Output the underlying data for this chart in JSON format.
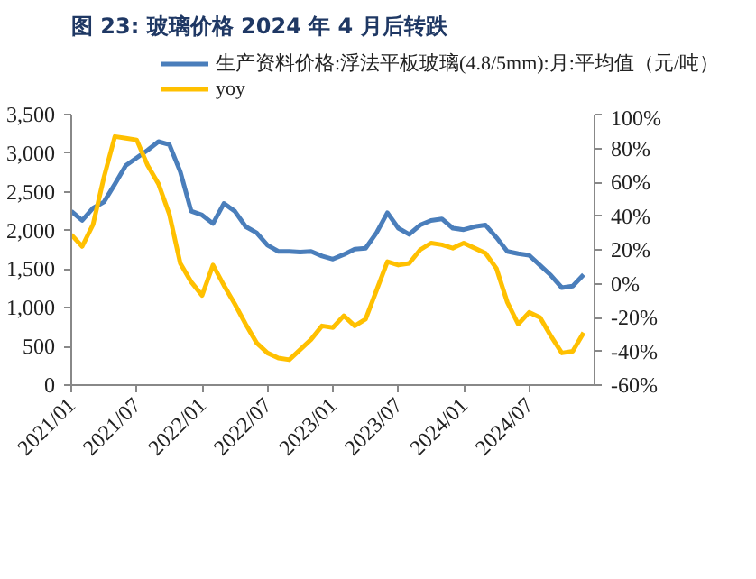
{
  "chart_data": {
    "type": "line",
    "title": "图 23:  玻璃价格 2024 年 4 月后转跌",
    "x": [
      "2021-01",
      "2021-02",
      "2021-03",
      "2021-04",
      "2021-05",
      "2021-06",
      "2021-07",
      "2021-08",
      "2021-09",
      "2021-10",
      "2021-11",
      "2021-12",
      "2022-01",
      "2022-02",
      "2022-03",
      "2022-04",
      "2022-05",
      "2022-06",
      "2022-07",
      "2022-08",
      "2022-09",
      "2022-10",
      "2022-11",
      "2022-12",
      "2023-01",
      "2023-02",
      "2023-03",
      "2023-04",
      "2023-05",
      "2023-06",
      "2023-07",
      "2023-08",
      "2023-09",
      "2023-10",
      "2023-11",
      "2023-12",
      "2024-01",
      "2024-02",
      "2024-03",
      "2024-04",
      "2024-05",
      "2024-06",
      "2024-07",
      "2024-08",
      "2024-09",
      "2024-10",
      "2024-11",
      "2024-12"
    ],
    "series": [
      {
        "name": "生产资料价格:浮法平板玻璃(4.8/5mm):月:平均值（元/吨）",
        "color": "#4a7ebb",
        "values": [
          2250,
          2130,
          2290,
          2370,
          2600,
          2840,
          2940,
          3040,
          3150,
          3110,
          2760,
          2250,
          2200,
          2090,
          2350,
          2250,
          2050,
          1970,
          1810,
          1730,
          1730,
          1720,
          1730,
          1670,
          1630,
          1690,
          1760,
          1770,
          1970,
          2230,
          2030,
          1950,
          2070,
          2130,
          2150,
          2030,
          2010,
          2050,
          2070,
          1910,
          1730,
          1700,
          1680,
          1550,
          1420,
          1260,
          1280,
          1430
        ]
      },
      {
        "name": "yoy",
        "color": "#ffc000",
        "axis": "y2",
        "values": [
          29,
          22,
          35,
          63,
          87,
          86,
          85,
          70,
          59,
          41,
          12,
          1,
          -7,
          11,
          -1,
          -12,
          -24,
          -35,
          -41,
          -44,
          -45,
          -39,
          -33,
          -25,
          -26,
          -19,
          -25,
          -21,
          -4,
          13,
          11,
          12,
          20,
          24,
          23,
          21,
          24,
          21,
          18,
          9,
          -11,
          -24,
          -17,
          -20,
          -31,
          -41,
          -40,
          -29
        ]
      }
    ],
    "xlim": [
      "2021-01",
      "2025-01"
    ],
    "xticks": [
      {
        "value": "2021-01",
        "label": "2021/01"
      },
      {
        "value": "2021-07",
        "label": "2021/07"
      },
      {
        "value": "2022-01",
        "label": "2022/01"
      },
      {
        "value": "2022-07",
        "label": "2022/07"
      },
      {
        "value": "2023-01",
        "label": "2023/01"
      },
      {
        "value": "2023-07",
        "label": "2023/07"
      },
      {
        "value": "2024-01",
        "label": "2024/01"
      },
      {
        "value": "2024-07",
        "label": "2024/07"
      }
    ],
    "ylim": [
      0,
      3500
    ],
    "yticks": [
      {
        "value": 0,
        "label": "0"
      },
      {
        "value": 500,
        "label": "500"
      },
      {
        "value": 1000,
        "label": "1,000"
      },
      {
        "value": 1500,
        "label": "1,500"
      },
      {
        "value": 2000,
        "label": "2,000"
      },
      {
        "value": 2500,
        "label": "2,500"
      },
      {
        "value": 3000,
        "label": "3,000"
      },
      {
        "value": 3500,
        "label": "3,500"
      }
    ],
    "y2lim": [
      -60,
      100
    ],
    "y2ticks": [
      {
        "value": -60,
        "label": "-60%"
      },
      {
        "value": -40,
        "label": "-40%"
      },
      {
        "value": -20,
        "label": "-20%"
      },
      {
        "value": 0,
        "label": "0%"
      },
      {
        "value": 20,
        "label": "20%"
      },
      {
        "value": 40,
        "label": "40%"
      },
      {
        "value": 60,
        "label": "60%"
      },
      {
        "value": 80,
        "label": "80%"
      },
      {
        "value": 100,
        "label": "100%"
      }
    ],
    "legend": "top",
    "grid": false,
    "line_style": "solid"
  }
}
